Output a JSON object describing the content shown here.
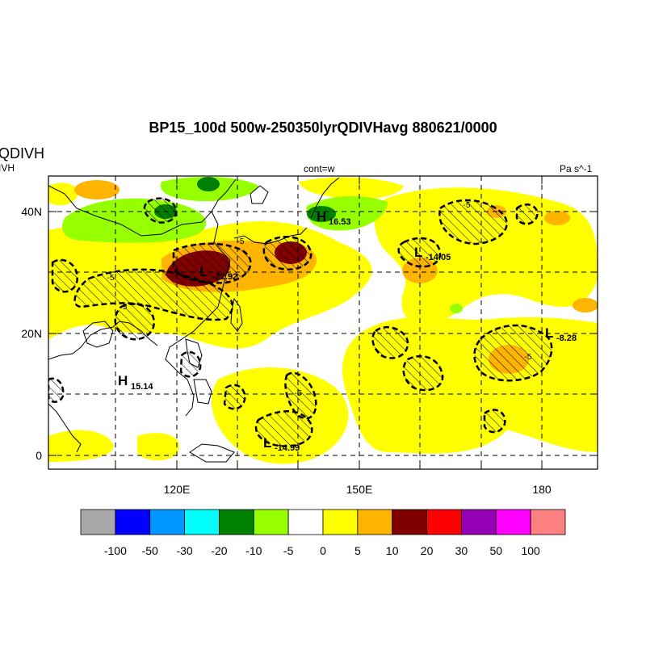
{
  "header": {
    "title": "BP15_100d 500w-250350lyrQDIVHavg  880621/0000",
    "left_title": "QDIVH",
    "left_subtitle": "IVH",
    "center_subtitle": "cont=w",
    "right_subtitle": "Pa s^-1"
  },
  "map": {
    "lat_labels": [
      "40N",
      "20N",
      "0"
    ],
    "lon_labels": [
      "120E",
      "150E",
      "180"
    ],
    "centers": [
      {
        "type": "H",
        "value": "16.53"
      },
      {
        "type": "L",
        "value": "-14.05"
      },
      {
        "type": "L",
        "value": "-22.92"
      },
      {
        "type": "L",
        "value": "-8.28"
      },
      {
        "type": "H",
        "value": "15.14"
      },
      {
        "type": "L",
        "value": "-14.99"
      }
    ],
    "contour_labels": [
      "-5",
      "-5",
      "-5",
      "-5",
      "-5",
      "-5"
    ]
  },
  "colorbar": {
    "colors": [
      "#a8a8a8",
      "#0000ff",
      "#0096ff",
      "#00ffff",
      "#008000",
      "#96ff00",
      "#ffffff",
      "#ffff00",
      "#ffb400",
      "#800000",
      "#ff0000",
      "#9600b4",
      "#ff00ff",
      "#ff8080"
    ],
    "labels": [
      "-100",
      "-50",
      "-30",
      "-20",
      "-10",
      "-5",
      "0",
      "5",
      "10",
      "20",
      "30",
      "50",
      "100"
    ]
  }
}
